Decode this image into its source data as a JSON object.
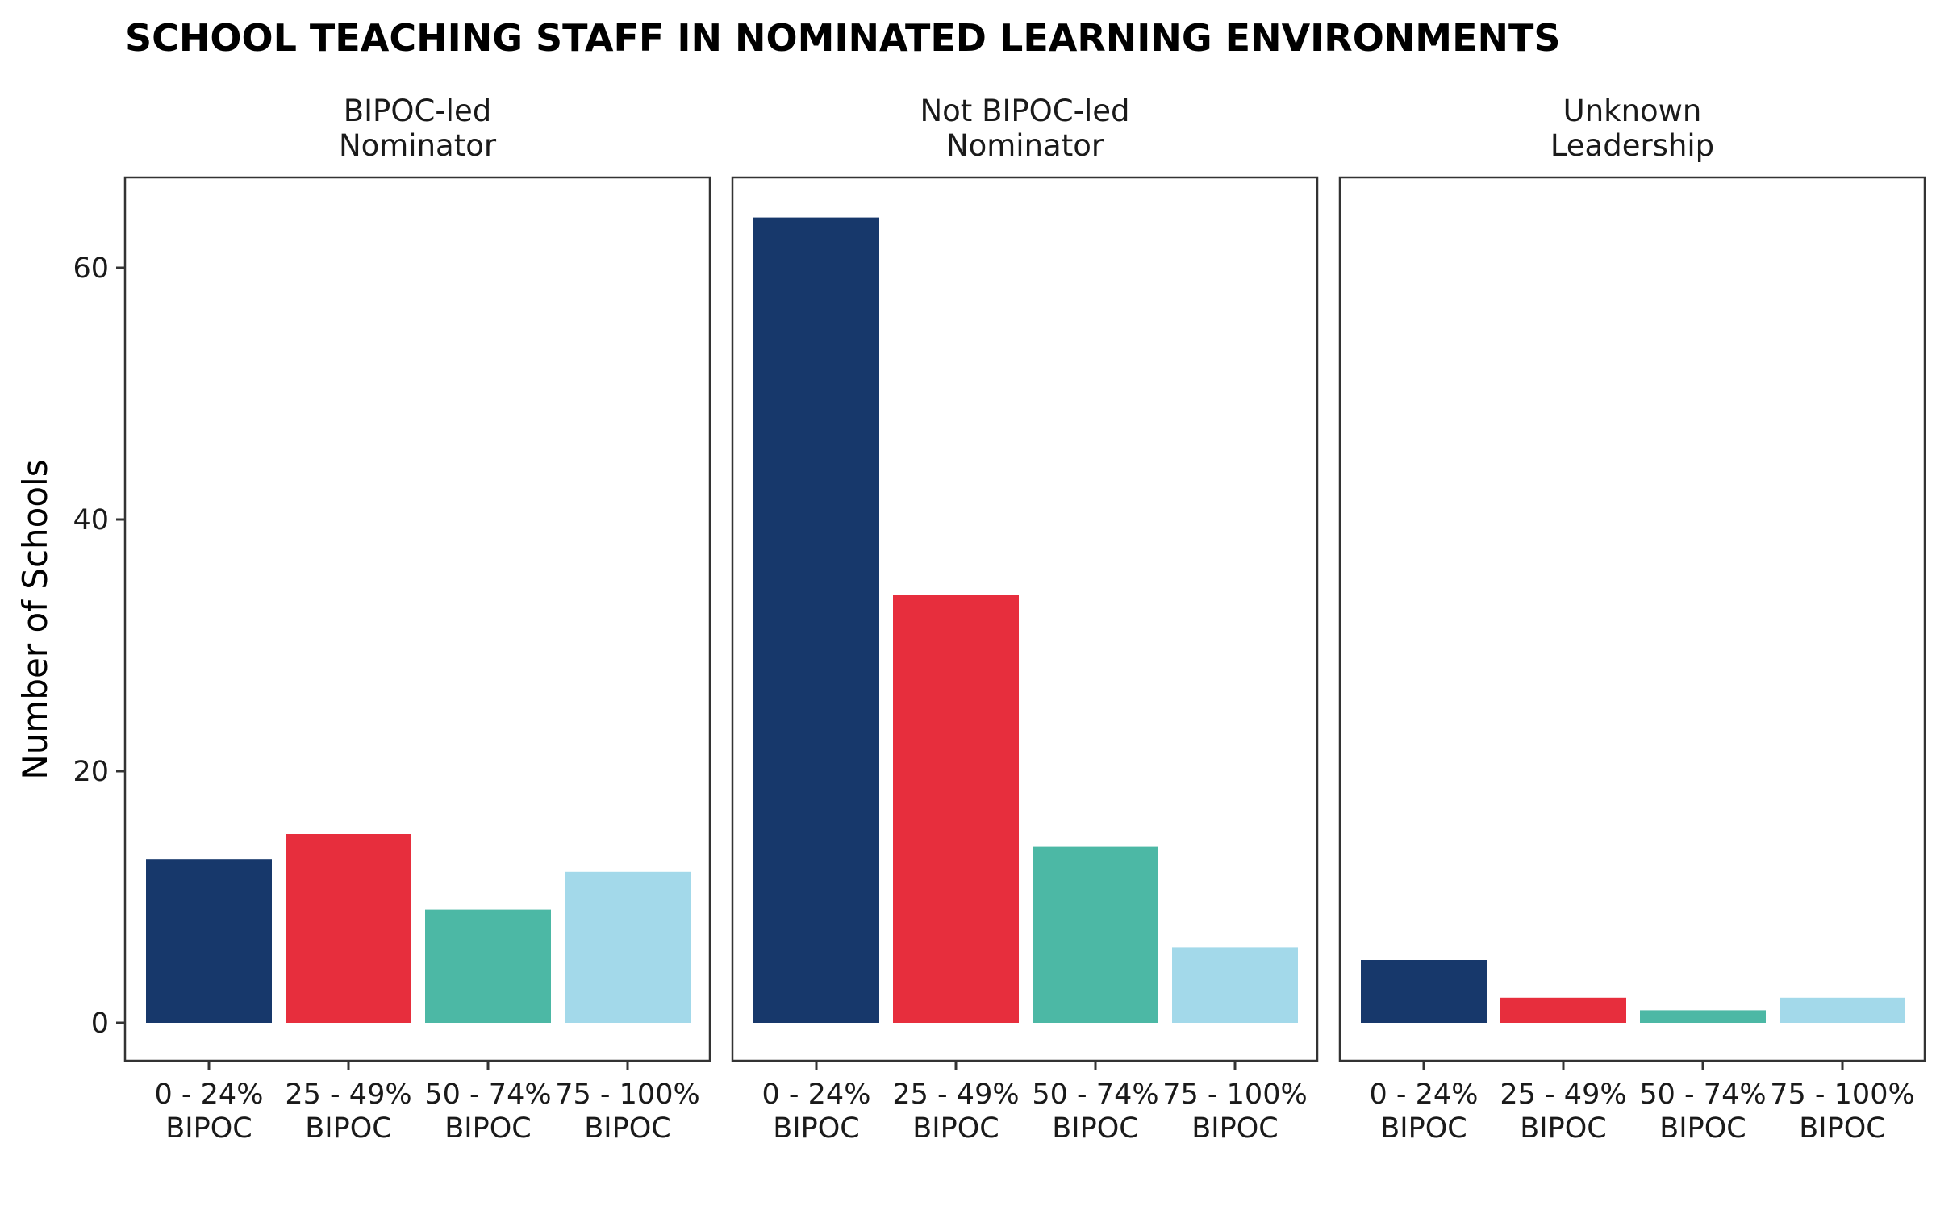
{
  "chart_data": {
    "type": "bar",
    "title": "SCHOOL TEACHING STAFF IN NOMINATED LEARNING ENVIRONMENTS",
    "ylabel": "Number of Schools",
    "xlabel": "",
    "ylim": [
      0,
      67
    ],
    "yticks": [
      0,
      20,
      40,
      60
    ],
    "categories": [
      [
        "0 - 24%",
        "BIPOC"
      ],
      [
        "25 - 49%",
        "BIPOC"
      ],
      [
        "50 - 74%",
        "BIPOC"
      ],
      [
        "75 - 100%",
        "BIPOC"
      ]
    ],
    "colors": [
      "#17386b",
      "#e72e3d",
      "#4cb8a5",
      "#a3d9ea"
    ],
    "grid": false,
    "legend": "none",
    "panels": [
      {
        "label": [
          "BIPOC-led",
          "Nominator"
        ],
        "values": [
          13,
          15,
          9,
          12
        ]
      },
      {
        "label": [
          "Not BIPOC-led",
          "Nominator"
        ],
        "values": [
          64,
          34,
          14,
          6
        ]
      },
      {
        "label": [
          "Unknown",
          "Leadership"
        ],
        "values": [
          5,
          2,
          1,
          2
        ]
      }
    ]
  }
}
